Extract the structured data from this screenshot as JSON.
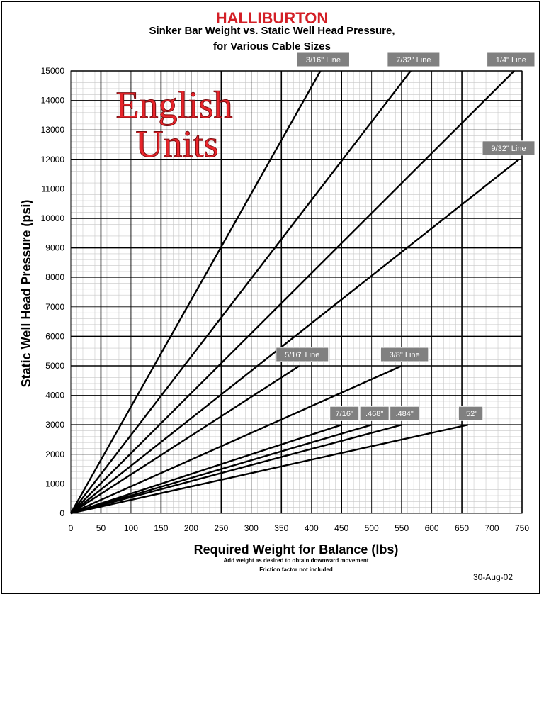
{
  "brand": "HALLIBURTON",
  "date": "30-Aug-02",
  "watermark": [
    "English",
    "Units"
  ],
  "colors": {
    "brand": "#d31f26",
    "label_bg": "#808080",
    "line": "#000000"
  },
  "chart_data": {
    "type": "line",
    "title": [
      "Sinker Bar Weight vs. Static Well Head Pressure,",
      "for Various Cable Sizes"
    ],
    "xlabel": "Required Weight for Balance (lbs)",
    "ylabel": "Static Well Head Pressure (psi)",
    "notes": [
      "Add weight as desired to obtain downward movement",
      "Friction factor not included"
    ],
    "xlim": [
      0,
      750
    ],
    "ylim": [
      0,
      15000
    ],
    "xticks": [
      0,
      50,
      100,
      150,
      200,
      250,
      300,
      350,
      400,
      450,
      500,
      550,
      600,
      650,
      700,
      750
    ],
    "yticks": [
      0,
      1000,
      2000,
      3000,
      4000,
      5000,
      6000,
      7000,
      8000,
      9000,
      10000,
      11000,
      12000,
      13000,
      14000,
      15000
    ],
    "grid": true,
    "series": [
      {
        "name": "3/16\" Line",
        "x": [
          0,
          415
        ],
        "y": [
          0,
          15000
        ]
      },
      {
        "name": "7/32\" Line",
        "x": [
          0,
          565
        ],
        "y": [
          0,
          15000
        ]
      },
      {
        "name": "1/4\" Line",
        "x": [
          0,
          737
        ],
        "y": [
          0,
          15000
        ]
      },
      {
        "name": "9/32\" Line",
        "x": [
          0,
          745
        ],
        "y": [
          0,
          12000
        ]
      },
      {
        "name": "5/16\" Line",
        "x": [
          0,
          380
        ],
        "y": [
          0,
          5000
        ]
      },
      {
        "name": "3/8\" Line",
        "x": [
          0,
          550
        ],
        "y": [
          0,
          5000
        ]
      },
      {
        "name": "7/16\"",
        "x": [
          0,
          450
        ],
        "y": [
          0,
          3000
        ]
      },
      {
        "name": ".468\"",
        "x": [
          0,
          500
        ],
        "y": [
          0,
          3000
        ]
      },
      {
        "name": ".484\"",
        "x": [
          0,
          550
        ],
        "y": [
          0,
          3000
        ]
      },
      {
        "name": ".52\"",
        "x": [
          0,
          660
        ],
        "y": [
          0,
          3000
        ]
      }
    ]
  }
}
